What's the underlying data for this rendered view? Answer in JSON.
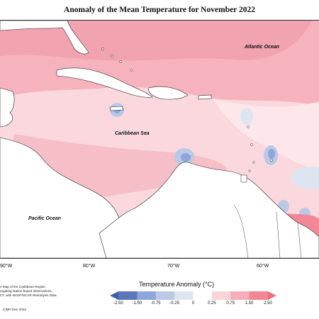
{
  "title": "Anomaly of the Mean Temperature for November 2022",
  "ocean_labels": {
    "atlantic": "Atlantic Ocean",
    "caribbean": "Caribbean Sea",
    "pacific": "Pacific Ocean"
  },
  "longitude_labels": [
    "90°W",
    "80°W",
    "70°W",
    "60°W"
  ],
  "caption_lines": [
    "Temperature Anomaly Map of the Caribbean Region",
    "created by aggregating station based observations,",
    "ECMWF, with NCEP/NCAR Reanalysis Data."
  ],
  "caption_visible": [
    "n Map of the Caribbean Region",
    "regating station based observations,",
    "CF, with NCEP/NCAR Reanalysis Data."
  ],
  "credit": "CIMH Dec-2022",
  "legend": {
    "title": "Temperature Anomaly (°C)",
    "ticks": [
      "-2.50",
      "-1.50",
      "-0.75",
      "-0.25",
      "0",
      "0.25",
      "0.75",
      "1.50",
      "2.50"
    ],
    "colors": [
      "#5a78b8",
      "#8fa6dc",
      "#b9c9e6",
      "#dde6f0",
      "#ffffff",
      "#fbd3da",
      "#f6aeb9",
      "#f08896"
    ]
  }
}
